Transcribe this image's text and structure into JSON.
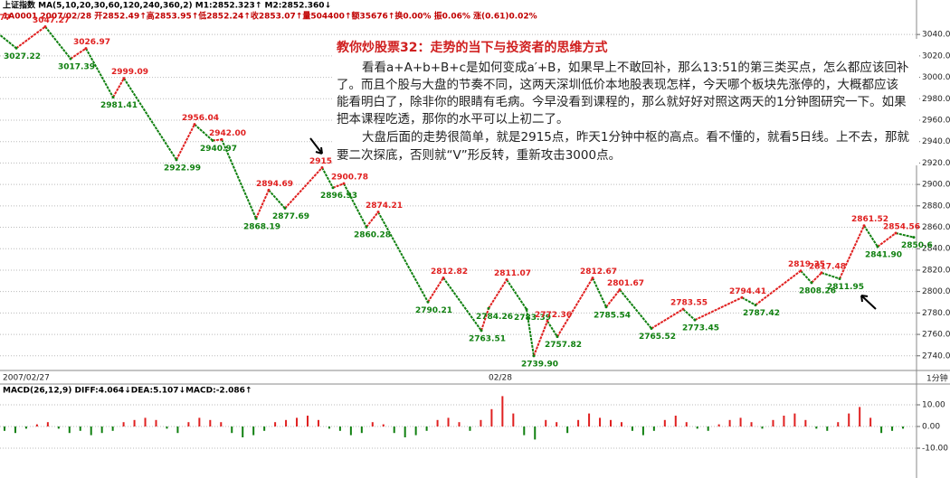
{
  "header": {
    "line1": "上证指数 MA(5,10,20,30,60,120,240,360,2) M1:2852.323↑ M2:2852.360↓",
    "line2": "1A0001 2007/02/28 开2852.49↑高2853.95↑低2852.24↑收2853.07↑量504400↑额35676↑换0.00% 振0.06% 涨(0.61)0.02%",
    "period": "1分钟"
  },
  "note": {
    "title": "教你炒股票32：走势的当下与投资者的思维方式",
    "lines": [
      "看看a+A+b+B+c是如何变成a′+B，如果早上不敢回补，那么13:51的第三类买点，怎么都应该回补",
      "了。而且个股与大盘的节奏不同，这两天深圳低价本地股表现怎样，今天哪个板块先涨停的，大概都应该",
      "能看明白了，除非你的眼睛有毛病。今早没看到课程的，那么就好好对照这两天的1分钟图研究一下。如果",
      "把本课程吃透，那你的水平可以上初二了。",
      "大盘后面的走势很简单，就是2915点，昨天1分钟中枢的高点。看不懂的，就看5日线。上不去，那就",
      "要二次探底，否则就“V”形反转，重新攻击3000点。"
    ]
  },
  "chart_data": [
    {
      "type": "line",
      "x_labels": [
        "2007/02/27",
        "02/28"
      ],
      "values": [
        3049.77,
        3027.22,
        3047.27,
        3017.39,
        3026.97,
        2981.41,
        2999.09,
        2922.99,
        2956.04,
        2940.97,
        2942.0,
        2868.19,
        2894.69,
        2877.69,
        2915.7,
        2896.93,
        2900.78,
        2860.28,
        2874.21,
        2790.21,
        2812.82,
        2763.51,
        2784.26,
        2811.07,
        2783.39,
        2739.9,
        2772.36,
        2757.82,
        2812.67,
        2785.54,
        2801.67,
        2765.52,
        2783.55,
        2773.45,
        2794.41,
        2787.42,
        2819.35,
        2808.26,
        2817.48,
        2811.95,
        2861.52,
        2841.9,
        2854.56,
        2850.6
      ],
      "value_labels": [
        "3049.77",
        "3027.22",
        "3047.27",
        "3017.39",
        "3026.97",
        "2981.41",
        "2999.09",
        "2922.99",
        "2956.04",
        "2940.97",
        "2942.00",
        "2868.19",
        "2894.69",
        "2877.69",
        "2915.70",
        "2896.93",
        "2900.78",
        "2860.28",
        "2874.21",
        "2790.21",
        "2812.82",
        "2763.51",
        "2784.26",
        "2811.07",
        "2783.39",
        "2739.90",
        "2772.36",
        "2757.82",
        "2812.67",
        "2785.54",
        "2801.67",
        "2765.52",
        "2783.55",
        "2773.45",
        "2794.41",
        "2787.42",
        "2819.35",
        "2808.26",
        "2817.48",
        "2811.95",
        "2861.52",
        "2841.90",
        "2854.56",
        "2850.6"
      ],
      "up_color": "#e02020",
      "down_color": "#108010",
      "ylim": [
        2728,
        3057
      ],
      "yticks": [
        {
          "value": 3040,
          "label": "3040.0"
        },
        {
          "value": 3020,
          "label": "3020.0"
        },
        {
          "value": 3000,
          "label": "3000.0"
        },
        {
          "value": 2980,
          "label": "2980.0"
        },
        {
          "value": 2960,
          "label": "2960.0"
        },
        {
          "value": 2940,
          "label": "2940.0"
        },
        {
          "value": 2920,
          "label": "2920.0"
        },
        {
          "value": 2900,
          "label": "2900.0"
        },
        {
          "value": 2880,
          "label": "2880.0"
        },
        {
          "value": 2860,
          "label": "2860.0"
        },
        {
          "value": 2840,
          "label": "2840.0"
        },
        {
          "value": 2820,
          "label": "2820.0"
        },
        {
          "value": 2800,
          "label": "2800.0"
        },
        {
          "value": 2780,
          "label": "2780.0"
        },
        {
          "value": 2760,
          "label": "2760.0"
        },
        {
          "value": 2740,
          "label": "2740.0"
        }
      ],
      "grid": true
    },
    {
      "type": "bar",
      "title": "MACD(26,12,9) DIFF:4.064↓DEA:5.107↓MACD:-2.086↑",
      "values": [
        -2,
        -3,
        -1,
        1,
        2,
        -1,
        -3,
        -2,
        -4,
        -3,
        -2,
        2,
        3,
        4,
        3,
        -1,
        -3,
        2,
        4,
        3,
        2,
        -3,
        -5,
        -4,
        -2,
        2,
        3,
        4,
        5,
        3,
        -1,
        -2,
        -4,
        -3,
        2,
        1,
        -3,
        -5,
        -4,
        -2,
        3,
        4,
        2,
        -2,
        3,
        8,
        14,
        6,
        -4,
        -6,
        3,
        2,
        -3,
        3,
        6,
        4,
        3,
        2,
        -2,
        -4,
        -2,
        3,
        5,
        2,
        -1,
        -2,
        1,
        3,
        4,
        2,
        -1,
        3,
        5,
        6,
        3,
        -1,
        -2,
        2,
        6,
        9,
        4,
        -3,
        -2,
        -1
      ],
      "up_color": "#e02020",
      "down_color": "#108010",
      "ylim": [
        -17.5,
        17.5
      ],
      "yticks": [
        {
          "value": 10,
          "label": "10.00"
        },
        {
          "value": 0,
          "label": "0.00"
        },
        {
          "value": -10,
          "label": "-10.00"
        }
      ],
      "grid": true
    }
  ]
}
